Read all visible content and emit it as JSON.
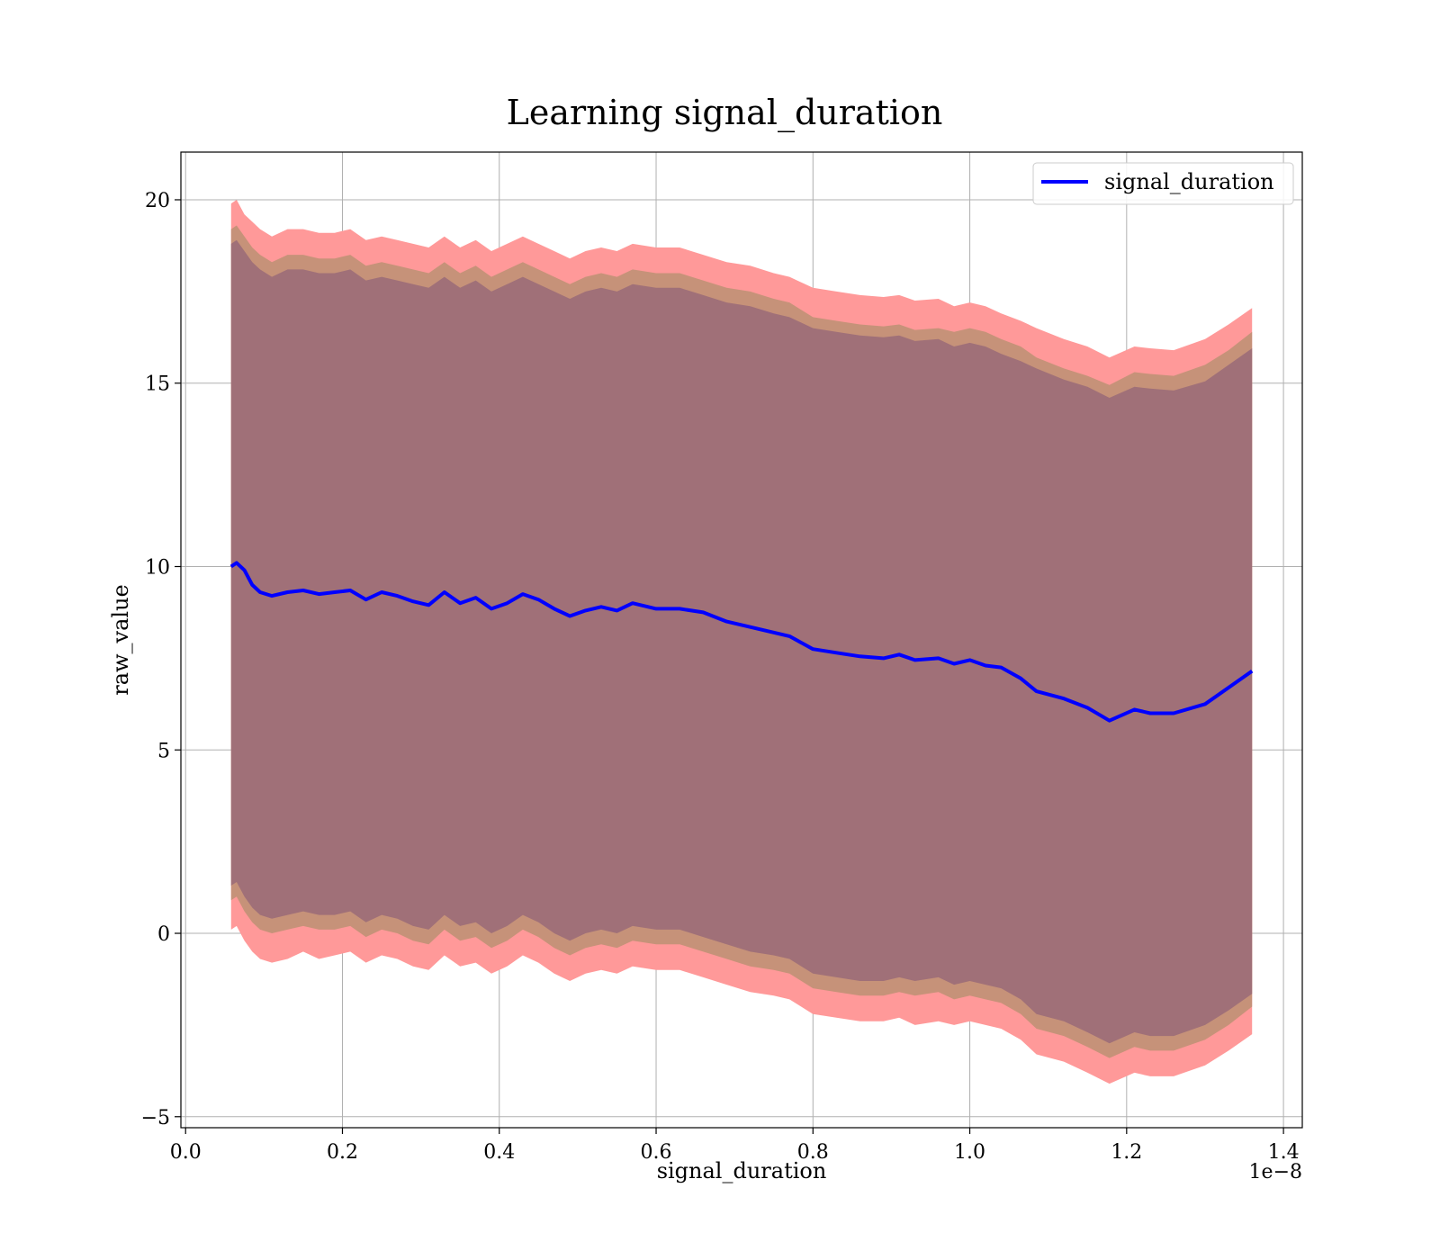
{
  "colors": {
    "line": "#0000ff",
    "band_outer": "#ff9999",
    "band_middle": "#c69279",
    "band_inner": "#a07078",
    "grid": "#b0b0b0"
  },
  "chart_data": {
    "type": "line",
    "title": "Learning signal_duration",
    "xlabel": "signal_duration",
    "ylabel": "raw_value",
    "x_offset_label": "1e−8",
    "xlim": [
      -0.006,
      1.424
    ],
    "ylim": [
      -5.3,
      21.3
    ],
    "grid": true,
    "legend_position": "upper right",
    "x_ticks": [
      0.0,
      0.2,
      0.4,
      0.6,
      0.8,
      1.0,
      1.2,
      1.4
    ],
    "x_tick_labels": [
      "0.0",
      "0.2",
      "0.4",
      "0.6",
      "0.8",
      "1.0",
      "1.2",
      "1.4"
    ],
    "y_ticks": [
      -5,
      0,
      5,
      10,
      15,
      20
    ],
    "y_tick_labels": [
      "−5",
      "0",
      "5",
      "10",
      "15",
      "20"
    ],
    "x": [
      0.058,
      0.065,
      0.075,
      0.085,
      0.095,
      0.11,
      0.13,
      0.15,
      0.17,
      0.19,
      0.21,
      0.23,
      0.25,
      0.27,
      0.29,
      0.31,
      0.33,
      0.35,
      0.37,
      0.39,
      0.41,
      0.43,
      0.45,
      0.47,
      0.49,
      0.51,
      0.53,
      0.55,
      0.57,
      0.6,
      0.63,
      0.66,
      0.69,
      0.72,
      0.75,
      0.77,
      0.8,
      0.83,
      0.86,
      0.89,
      0.91,
      0.93,
      0.96,
      0.98,
      1.0,
      1.02,
      1.04,
      1.065,
      1.085,
      1.12,
      1.15,
      1.178,
      1.21,
      1.23,
      1.26,
      1.3,
      1.33,
      1.36
    ],
    "series": [
      {
        "name": "signal_duration",
        "values": [
          10.0,
          10.1,
          9.9,
          9.5,
          9.3,
          9.2,
          9.3,
          9.35,
          9.25,
          9.3,
          9.35,
          9.1,
          9.3,
          9.2,
          9.05,
          8.95,
          9.3,
          9.0,
          9.15,
          8.85,
          9.0,
          9.25,
          9.1,
          8.85,
          8.65,
          8.8,
          8.9,
          8.8,
          9.0,
          8.85,
          8.85,
          8.75,
          8.5,
          8.35,
          8.2,
          8.1,
          7.75,
          7.65,
          7.55,
          7.5,
          7.6,
          7.45,
          7.5,
          7.35,
          7.45,
          7.3,
          7.25,
          6.95,
          6.6,
          6.4,
          6.15,
          5.8,
          6.1,
          6.0,
          6.0,
          6.25,
          6.7,
          7.15
        ]
      }
    ],
    "bands": [
      {
        "upper": [
          19.9,
          20.0,
          19.6,
          19.4,
          19.2,
          19.0,
          19.2,
          19.2,
          19.1,
          19.1,
          19.2,
          18.9,
          19.0,
          18.9,
          18.8,
          18.7,
          19.0,
          18.7,
          18.9,
          18.6,
          18.8,
          19.0,
          18.8,
          18.6,
          18.4,
          18.6,
          18.7,
          18.6,
          18.8,
          18.7,
          18.7,
          18.5,
          18.3,
          18.2,
          18.0,
          17.9,
          17.6,
          17.5,
          17.4,
          17.35,
          17.4,
          17.25,
          17.3,
          17.1,
          17.2,
          17.1,
          16.9,
          16.7,
          16.5,
          16.2,
          16.0,
          15.7,
          16.0,
          15.95,
          15.9,
          16.2,
          16.6,
          17.05
        ],
        "lower": [
          0.1,
          0.2,
          -0.2,
          -0.5,
          -0.7,
          -0.8,
          -0.7,
          -0.5,
          -0.7,
          -0.6,
          -0.5,
          -0.8,
          -0.6,
          -0.7,
          -0.9,
          -1.0,
          -0.6,
          -0.9,
          -0.8,
          -1.1,
          -0.9,
          -0.6,
          -0.8,
          -1.1,
          -1.3,
          -1.1,
          -1.0,
          -1.1,
          -0.9,
          -1.0,
          -1.0,
          -1.2,
          -1.4,
          -1.6,
          -1.7,
          -1.8,
          -2.2,
          -2.3,
          -2.4,
          -2.4,
          -2.3,
          -2.5,
          -2.4,
          -2.5,
          -2.4,
          -2.5,
          -2.6,
          -2.9,
          -3.3,
          -3.5,
          -3.8,
          -4.1,
          -3.8,
          -3.9,
          -3.9,
          -3.6,
          -3.2,
          -2.75
        ]
      },
      {
        "upper": [
          19.2,
          19.3,
          19.0,
          18.7,
          18.5,
          18.3,
          18.5,
          18.5,
          18.4,
          18.4,
          18.5,
          18.2,
          18.3,
          18.2,
          18.1,
          18.0,
          18.3,
          18.0,
          18.2,
          17.9,
          18.1,
          18.3,
          18.1,
          17.9,
          17.7,
          17.9,
          18.0,
          17.9,
          18.1,
          18.0,
          18.0,
          17.8,
          17.6,
          17.5,
          17.3,
          17.2,
          16.8,
          16.7,
          16.6,
          16.55,
          16.6,
          16.45,
          16.5,
          16.4,
          16.5,
          16.4,
          16.2,
          16.0,
          15.7,
          15.4,
          15.2,
          14.95,
          15.3,
          15.25,
          15.2,
          15.5,
          15.9,
          16.4
        ],
        "lower": [
          0.9,
          1.0,
          0.6,
          0.3,
          0.1,
          0.0,
          0.1,
          0.2,
          0.1,
          0.1,
          0.2,
          -0.1,
          0.1,
          0.0,
          -0.2,
          -0.3,
          0.1,
          -0.2,
          -0.1,
          -0.4,
          -0.2,
          0.1,
          -0.1,
          -0.4,
          -0.6,
          -0.4,
          -0.3,
          -0.4,
          -0.2,
          -0.3,
          -0.3,
          -0.5,
          -0.7,
          -0.9,
          -1.0,
          -1.1,
          -1.5,
          -1.6,
          -1.7,
          -1.7,
          -1.6,
          -1.7,
          -1.6,
          -1.8,
          -1.7,
          -1.8,
          -1.9,
          -2.2,
          -2.6,
          -2.8,
          -3.1,
          -3.4,
          -3.1,
          -3.2,
          -3.2,
          -2.9,
          -2.5,
          -2.0
        ]
      },
      {
        "upper": [
          18.8,
          18.9,
          18.6,
          18.3,
          18.1,
          17.9,
          18.1,
          18.1,
          18.0,
          18.0,
          18.1,
          17.8,
          17.9,
          17.8,
          17.7,
          17.6,
          17.9,
          17.6,
          17.8,
          17.5,
          17.7,
          17.9,
          17.7,
          17.5,
          17.3,
          17.5,
          17.6,
          17.5,
          17.7,
          17.6,
          17.6,
          17.4,
          17.2,
          17.1,
          16.9,
          16.8,
          16.5,
          16.4,
          16.3,
          16.25,
          16.3,
          16.15,
          16.2,
          16.0,
          16.1,
          16.0,
          15.8,
          15.6,
          15.4,
          15.1,
          14.9,
          14.6,
          14.9,
          14.85,
          14.8,
          15.05,
          15.5,
          15.95
        ],
        "lower": [
          1.3,
          1.4,
          1.0,
          0.7,
          0.5,
          0.4,
          0.5,
          0.6,
          0.5,
          0.5,
          0.6,
          0.3,
          0.5,
          0.4,
          0.2,
          0.1,
          0.5,
          0.2,
          0.3,
          0.0,
          0.2,
          0.5,
          0.3,
          0.0,
          -0.2,
          0.0,
          0.1,
          0.0,
          0.2,
          0.1,
          0.1,
          -0.1,
          -0.3,
          -0.5,
          -0.6,
          -0.7,
          -1.1,
          -1.2,
          -1.3,
          -1.3,
          -1.2,
          -1.3,
          -1.2,
          -1.4,
          -1.3,
          -1.4,
          -1.5,
          -1.8,
          -2.2,
          -2.4,
          -2.7,
          -3.0,
          -2.7,
          -2.8,
          -2.8,
          -2.5,
          -2.1,
          -1.65
        ]
      }
    ]
  }
}
